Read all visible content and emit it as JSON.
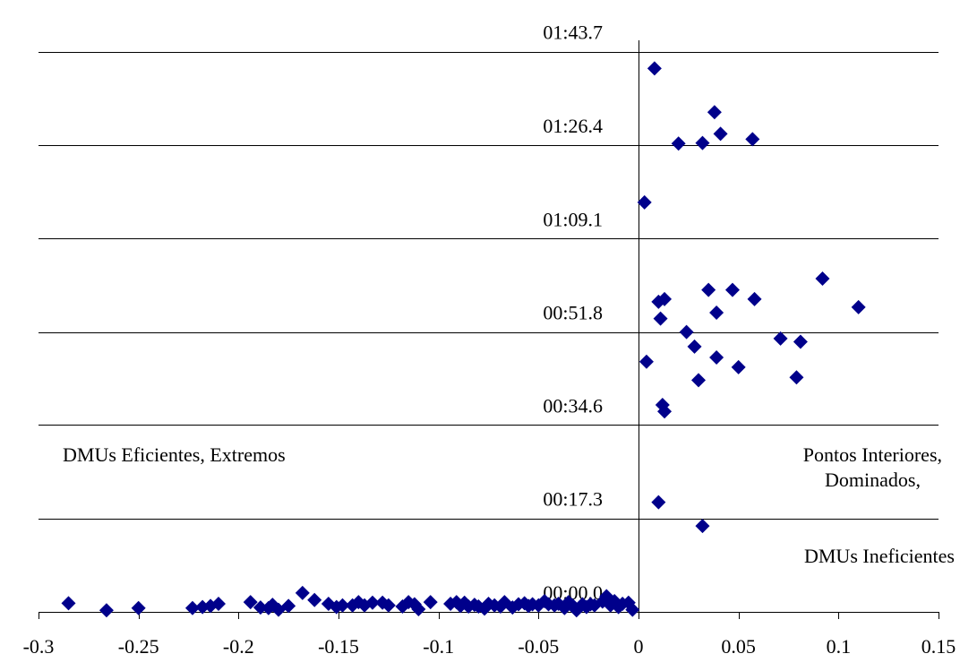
{
  "colors": {
    "marker": "#00008B",
    "grid": "#000000",
    "axis": "#000000",
    "background": "#FFFFFF"
  },
  "chart_data": {
    "type": "scatter",
    "title": "",
    "xlabel": "",
    "ylabel": "",
    "xlim": [
      -0.3,
      0.15
    ],
    "x_ticks": [
      "-0.3",
      "-0.25",
      "-0.2",
      "-0.15",
      "-0.1",
      "-0.05",
      "0",
      "0.05",
      "0.1",
      "0.15"
    ],
    "y_ticks": [
      "00:00.0",
      "00:17.3",
      "00:34.6",
      "00:51.8",
      "01:09.1",
      "01:26.4",
      "01:43.7"
    ],
    "y_tick_seconds": [
      0,
      17.3,
      34.6,
      51.8,
      69.1,
      86.4,
      103.7
    ],
    "grid": "horizontal",
    "marker": "diamond",
    "annotations": {
      "left": "DMUs Eficientes, Extremos",
      "right_line1": "Pontos Interiores,",
      "right_line2": "Dominados,",
      "right_line3": "DMUs Ineficientes"
    },
    "series": [
      {
        "points_seconds": [
          [
            -0.285,
            1.6
          ],
          [
            -0.266,
            0.3
          ],
          [
            -0.25,
            0.7
          ],
          [
            -0.223,
            0.7
          ],
          [
            -0.218,
            0.9
          ],
          [
            -0.214,
            1.1
          ],
          [
            -0.21,
            1.5
          ],
          [
            -0.194,
            1.8
          ],
          [
            -0.189,
            0.8
          ],
          [
            -0.185,
            0.7
          ],
          [
            -0.183,
            1.3
          ],
          [
            -0.18,
            0.4
          ],
          [
            -0.175,
            1.1
          ],
          [
            -0.168,
            3.5
          ],
          [
            -0.162,
            2.2
          ],
          [
            -0.155,
            1.5
          ],
          [
            -0.151,
            0.9
          ],
          [
            -0.148,
            1.2
          ],
          [
            -0.143,
            1.2
          ],
          [
            -0.14,
            1.8
          ],
          [
            -0.137,
            1.2
          ],
          [
            -0.133,
            1.7
          ],
          [
            -0.128,
            1.7
          ],
          [
            -0.125,
            1.2
          ],
          [
            -0.118,
            1.0
          ],
          [
            -0.115,
            1.8
          ],
          [
            -0.112,
            1.4
          ],
          [
            -0.11,
            0.5
          ],
          [
            -0.104,
            1.8
          ],
          [
            -0.094,
            1.5
          ],
          [
            -0.091,
            1.8
          ],
          [
            -0.089,
            1.1
          ],
          [
            -0.087,
            1.7
          ],
          [
            -0.085,
            1.0
          ],
          [
            -0.082,
            1.3
          ],
          [
            -0.08,
            1.0
          ],
          [
            -0.077,
            0.6
          ],
          [
            -0.075,
            1.5
          ],
          [
            -0.072,
            1.2
          ],
          [
            -0.069,
            1.0
          ],
          [
            -0.067,
            1.8
          ],
          [
            -0.063,
            0.8
          ],
          [
            -0.06,
            1.4
          ],
          [
            -0.057,
            1.6
          ],
          [
            -0.055,
            1.1
          ],
          [
            -0.053,
            1.4
          ],
          [
            -0.05,
            1.2
          ],
          [
            -0.047,
            2.0
          ],
          [
            -0.045,
            1.4
          ],
          [
            -0.042,
            1.2
          ],
          [
            -0.04,
            1.5
          ],
          [
            -0.037,
            0.7
          ],
          [
            -0.035,
            1.8
          ],
          [
            -0.033,
            1.2
          ],
          [
            -0.031,
            0.3
          ],
          [
            -0.028,
            1.4
          ],
          [
            -0.026,
            0.9
          ],
          [
            -0.024,
            1.4
          ],
          [
            -0.022,
            1.2
          ],
          [
            -0.018,
            1.9
          ],
          [
            -0.016,
            2.9
          ],
          [
            -0.014,
            1.2
          ],
          [
            -0.012,
            2.0
          ],
          [
            -0.01,
            0.9
          ],
          [
            -0.008,
            1.5
          ],
          [
            -0.005,
            1.7
          ],
          [
            -0.003,
            0.4
          ],
          [
            0.008,
            100.6
          ],
          [
            0.038,
            92.5
          ],
          [
            0.041,
            88.5
          ],
          [
            0.057,
            87.5
          ],
          [
            0.032,
            86.8
          ],
          [
            0.02,
            86.7
          ],
          [
            0.003,
            75.8
          ],
          [
            0.092,
            61.7
          ],
          [
            0.11,
            56.4
          ],
          [
            0.035,
            59.6
          ],
          [
            0.047,
            59.6
          ],
          [
            0.058,
            57.9
          ],
          [
            0.013,
            57.9
          ],
          [
            0.01,
            57.4
          ],
          [
            0.039,
            55.4
          ],
          [
            0.011,
            54.3
          ],
          [
            0.024,
            51.8
          ],
          [
            0.071,
            50.6
          ],
          [
            0.081,
            50.0
          ],
          [
            0.028,
            49.1
          ],
          [
            0.039,
            47.1
          ],
          [
            0.004,
            46.3
          ],
          [
            0.05,
            45.3
          ],
          [
            0.079,
            43.4
          ],
          [
            0.03,
            42.9
          ],
          [
            0.012,
            38.3
          ],
          [
            0.013,
            37.1
          ],
          [
            0.01,
            20.3
          ],
          [
            0.032,
            15.9
          ]
        ]
      }
    ]
  }
}
